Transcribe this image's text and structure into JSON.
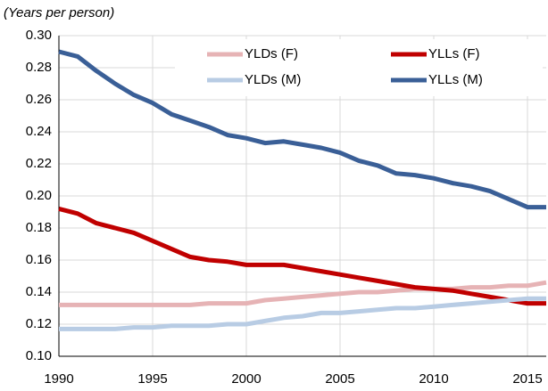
{
  "chart_data": {
    "type": "line",
    "y_label": "(Years per person)",
    "x": [
      1990,
      1991,
      1992,
      1993,
      1994,
      1995,
      1996,
      1997,
      1998,
      1999,
      2000,
      2001,
      2002,
      2003,
      2004,
      2005,
      2006,
      2007,
      2008,
      2009,
      2010,
      2011,
      2012,
      2013,
      2014,
      2015,
      2016
    ],
    "series": [
      {
        "name": "YLDs (F)",
        "color": "#e6b3b5",
        "values": [
          0.132,
          0.132,
          0.132,
          0.132,
          0.132,
          0.132,
          0.132,
          0.132,
          0.133,
          0.133,
          0.133,
          0.135,
          0.136,
          0.137,
          0.138,
          0.139,
          0.14,
          0.14,
          0.141,
          0.142,
          0.142,
          0.142,
          0.143,
          0.143,
          0.144,
          0.144,
          0.146
        ]
      },
      {
        "name": "YLLs (F)",
        "color": "#c00000",
        "values": [
          0.192,
          0.189,
          0.183,
          0.18,
          0.177,
          0.172,
          0.167,
          0.162,
          0.16,
          0.159,
          0.157,
          0.157,
          0.157,
          0.155,
          0.153,
          0.151,
          0.149,
          0.147,
          0.145,
          0.143,
          0.142,
          0.141,
          0.139,
          0.137,
          0.135,
          0.133,
          0.133
        ]
      },
      {
        "name": "YLDs (M)",
        "color": "#b8cce4",
        "values": [
          0.117,
          0.117,
          0.117,
          0.117,
          0.118,
          0.118,
          0.119,
          0.119,
          0.119,
          0.12,
          0.12,
          0.122,
          0.124,
          0.125,
          0.127,
          0.127,
          0.128,
          0.129,
          0.13,
          0.13,
          0.131,
          0.132,
          0.133,
          0.134,
          0.135,
          0.136,
          0.136
        ]
      },
      {
        "name": "YLLs (M)",
        "color": "#3a5f97",
        "values": [
          0.29,
          0.287,
          0.278,
          0.27,
          0.263,
          0.258,
          0.251,
          0.247,
          0.243,
          0.238,
          0.236,
          0.233,
          0.234,
          0.232,
          0.23,
          0.227,
          0.222,
          0.219,
          0.214,
          0.213,
          0.211,
          0.208,
          0.206,
          0.203,
          0.198,
          0.193,
          0.193
        ]
      }
    ],
    "xlim": [
      1990,
      2016
    ],
    "xticks": [
      1990,
      1995,
      2000,
      2005,
      2010,
      2015
    ],
    "ylim": [
      0.1,
      0.3
    ],
    "yticks": [
      {
        "value": 0.1,
        "label": "0.10"
      },
      0.12,
      0.14,
      0.16,
      0.18,
      {
        "value": 0.2,
        "label": "0.20"
      },
      0.22,
      0.24,
      0.26,
      0.28,
      {
        "value": 0.3,
        "label": "0.30"
      }
    ],
    "grid": true
  }
}
